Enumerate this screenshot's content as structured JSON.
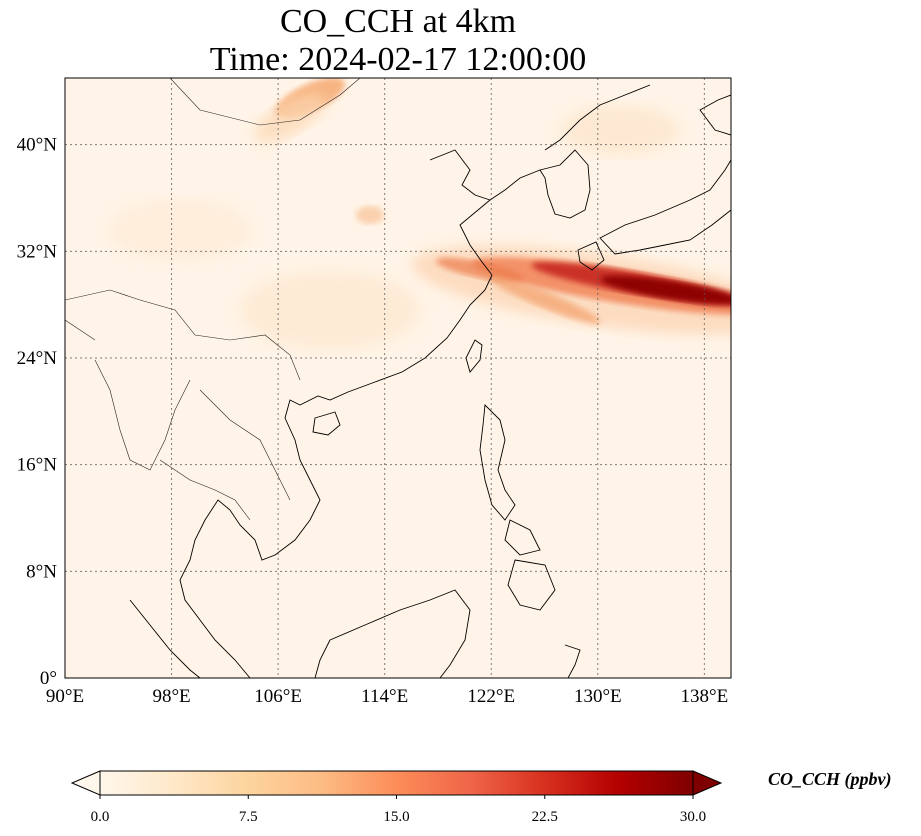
{
  "title": {
    "line1": "CO_CCH at 4km",
    "line2": "Time: 2024-02-17 12:00:00"
  },
  "map": {
    "lon_range": [
      90,
      140
    ],
    "lat_range": [
      0,
      45
    ],
    "lon_ticks": [
      {
        "value": 90,
        "label": "90°E"
      },
      {
        "value": 98,
        "label": "98°E"
      },
      {
        "value": 106,
        "label": "106°E"
      },
      {
        "value": 114,
        "label": "114°E"
      },
      {
        "value": 122,
        "label": "122°E"
      },
      {
        "value": 130,
        "label": "130°E"
      },
      {
        "value": 138,
        "label": "138°E"
      }
    ],
    "lat_ticks": [
      {
        "value": 0,
        "label": "0°"
      },
      {
        "value": 8,
        "label": "8°N"
      },
      {
        "value": 16,
        "label": "16°N"
      },
      {
        "value": 24,
        "label": "24°N"
      },
      {
        "value": 32,
        "label": "32°N"
      },
      {
        "value": 40,
        "label": "40°N"
      }
    ],
    "gridlines": true,
    "background_color": "#fff4e7",
    "plume_features": [
      {
        "lon": [
          120,
          140
        ],
        "lat": [
          28,
          32
        ],
        "intensity": "high",
        "note_color": "#8b0000"
      },
      {
        "lon": [
          108,
          112
        ],
        "lat": [
          43,
          45
        ],
        "intensity": "moderate",
        "note_color": "#f4a266"
      },
      {
        "lon": [
          113,
          115
        ],
        "lat": [
          34,
          35.5
        ],
        "intensity": "low",
        "note_color": "#fbd3ae"
      }
    ]
  },
  "colorbar": {
    "label": "CO_CCH (ppbv)",
    "min": 0.0,
    "max": 30.0,
    "extend": "both",
    "ticks": [
      {
        "value": 0.0,
        "label": "0.0"
      },
      {
        "value": 7.5,
        "label": "7.5"
      },
      {
        "value": 15.0,
        "label": "15.0"
      },
      {
        "value": 22.5,
        "label": "22.5"
      },
      {
        "value": 30.0,
        "label": "30.0"
      }
    ],
    "colormap": [
      "#fff7ec",
      "#fee8c8",
      "#fdd49e",
      "#fdbb84",
      "#fc8d59",
      "#ef6548",
      "#d7301f",
      "#b30000",
      "#7f0000"
    ]
  }
}
